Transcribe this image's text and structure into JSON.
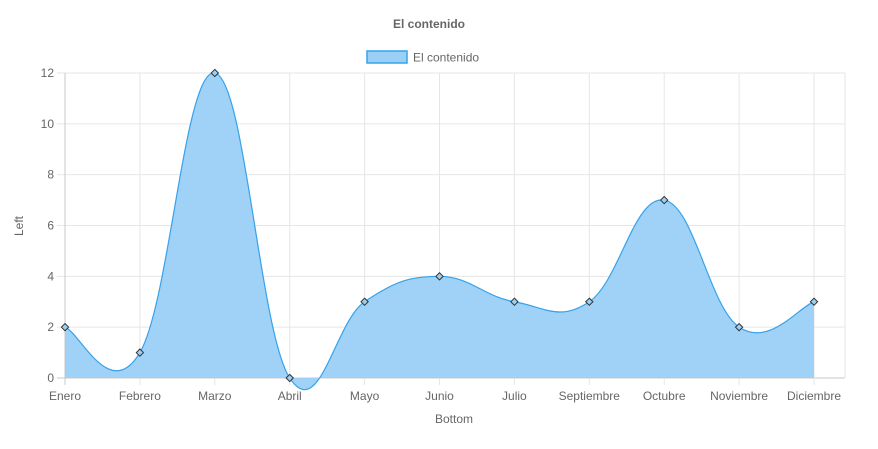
{
  "chart_data": {
    "type": "area",
    "title": "El contenido",
    "xlabel": "Bottom",
    "ylabel": "Left",
    "categories": [
      "Enero",
      "Febrero",
      "Marzo",
      "Abril",
      "Mayo",
      "Junio",
      "Julio",
      "Septiembre",
      "Octubre",
      "Noviembre",
      "Diciembre"
    ],
    "series": [
      {
        "name": "El contenido",
        "values": [
          2,
          1,
          12,
          0,
          3,
          4,
          3,
          3,
          7,
          2,
          3
        ]
      }
    ],
    "ylim": [
      0,
      12
    ],
    "yticks": [
      0,
      2,
      4,
      6,
      8,
      10,
      12
    ],
    "grid": true,
    "legend_position": "top",
    "point_style": "diamond",
    "colors": {
      "fill": "#9ad0f5",
      "stroke": "#36a2eb",
      "point_border": "#333333"
    }
  }
}
